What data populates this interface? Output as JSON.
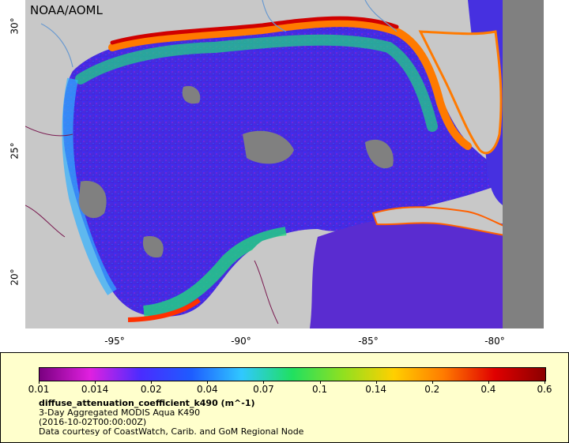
{
  "watermark": "NOAA/AOML",
  "axes": {
    "y_ticks": [
      "30°",
      "25°",
      "20°"
    ],
    "x_ticks": [
      "-95°",
      "-90°",
      "-85°",
      "-80°"
    ]
  },
  "colorbar": {
    "ticks": [
      "0.01",
      "0.014",
      "0.02",
      "0.04",
      "0.07",
      "0.1",
      "0.14",
      "0.2",
      "0.4",
      "0.6"
    ],
    "colors": [
      "#7a0080",
      "#e020e0",
      "#4a2cff",
      "#1e5cff",
      "#30c8ff",
      "#20e060",
      "#90e020",
      "#ffd000",
      "#ff7a00",
      "#e00000",
      "#8b0000"
    ]
  },
  "legend": {
    "variable": "diffuse_attenuation_coefficient_k490 (m^-1)",
    "line1": "3-Day Aggregated MODIS Aqua K490",
    "line2": "(2016-10-02T00:00:00Z)",
    "line3": "Data courtesy of CoastWatch, Carib. and GoM Regional Node"
  },
  "colors": {
    "land": "#c8c8c8",
    "nodata": "#808080",
    "legend_bg": "#ffffcc"
  }
}
